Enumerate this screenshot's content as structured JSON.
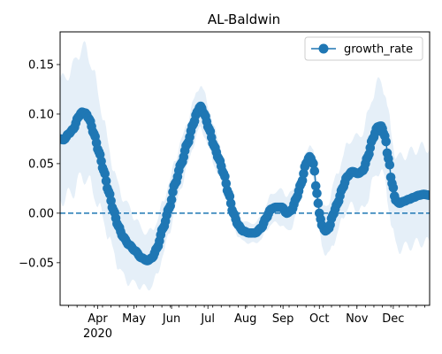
{
  "chart_data": {
    "type": "line",
    "title": "AL-Baldwin",
    "xlabel": "",
    "ylabel": "",
    "x_start": "2020-03-01",
    "x_end": "2020-12-31",
    "ylim": [
      -0.093,
      0.183
    ],
    "month_ticks": [
      {
        "date": "2020-04-01",
        "label": "Apr",
        "sublabel": "2020"
      },
      {
        "date": "2020-05-01",
        "label": "May",
        "sublabel": ""
      },
      {
        "date": "2020-06-01",
        "label": "Jun",
        "sublabel": ""
      },
      {
        "date": "2020-07-01",
        "label": "Jul",
        "sublabel": ""
      },
      {
        "date": "2020-08-01",
        "label": "Aug",
        "sublabel": ""
      },
      {
        "date": "2020-09-01",
        "label": "Sep",
        "sublabel": ""
      },
      {
        "date": "2020-10-01",
        "label": "Oct",
        "sublabel": ""
      },
      {
        "date": "2020-11-01",
        "label": "Nov",
        "sublabel": ""
      },
      {
        "date": "2020-12-01",
        "label": "Dec",
        "sublabel": ""
      }
    ],
    "y_ticks": [
      {
        "value": -0.05,
        "label": "−0.05"
      },
      {
        "value": 0.0,
        "label": "0.00"
      },
      {
        "value": 0.05,
        "label": "0.05"
      },
      {
        "value": 0.1,
        "label": "0.10"
      },
      {
        "value": 0.15,
        "label": "0.15"
      }
    ],
    "reference_line": {
      "y": 0.0,
      "style": "dashed"
    },
    "legend": {
      "position": "upper-right"
    },
    "colors": {
      "series": "#1f77b4",
      "band": "#dce9f5"
    },
    "series": [
      {
        "name": "growth_rate",
        "keypoints": [
          [
            "2020-03-01",
            0.075
          ],
          [
            "2020-03-04",
            0.074
          ],
          [
            "2020-03-08",
            0.08
          ],
          [
            "2020-03-12",
            0.085
          ],
          [
            "2020-03-16",
            0.097
          ],
          [
            "2020-03-19",
            0.102
          ],
          [
            "2020-03-22",
            0.101
          ],
          [
            "2020-03-25",
            0.095
          ],
          [
            "2020-03-29",
            0.08
          ],
          [
            "2020-04-02",
            0.062
          ],
          [
            "2020-04-06",
            0.043
          ],
          [
            "2020-04-10",
            0.022
          ],
          [
            "2020-04-14",
            0.003
          ],
          [
            "2020-04-18",
            -0.013
          ],
          [
            "2020-04-22",
            -0.024
          ],
          [
            "2020-04-27",
            -0.032
          ],
          [
            "2020-05-02",
            -0.038
          ],
          [
            "2020-05-07",
            -0.045
          ],
          [
            "2020-05-12",
            -0.048
          ],
          [
            "2020-05-16",
            -0.045
          ],
          [
            "2020-05-20",
            -0.035
          ],
          [
            "2020-05-25",
            -0.015
          ],
          [
            "2020-05-30",
            0.005
          ],
          [
            "2020-06-04",
            0.03
          ],
          [
            "2020-06-09",
            0.05
          ],
          [
            "2020-06-14",
            0.07
          ],
          [
            "2020-06-19",
            0.09
          ],
          [
            "2020-06-22",
            0.102
          ],
          [
            "2020-06-25",
            0.108
          ],
          [
            "2020-06-28",
            0.1
          ],
          [
            "2020-07-02",
            0.085
          ],
          [
            "2020-07-06",
            0.068
          ],
          [
            "2020-07-10",
            0.055
          ],
          [
            "2020-07-14",
            0.04
          ],
          [
            "2020-07-18",
            0.02
          ],
          [
            "2020-07-22",
            0.0
          ],
          [
            "2020-07-26",
            -0.012
          ],
          [
            "2020-07-30",
            -0.018
          ],
          [
            "2020-08-04",
            -0.02
          ],
          [
            "2020-08-09",
            -0.02
          ],
          [
            "2020-08-14",
            -0.015
          ],
          [
            "2020-08-18",
            -0.005
          ],
          [
            "2020-08-22",
            0.004
          ],
          [
            "2020-08-26",
            0.006
          ],
          [
            "2020-08-31",
            0.006
          ],
          [
            "2020-09-04",
            0.0
          ],
          [
            "2020-09-08",
            0.003
          ],
          [
            "2020-09-12",
            0.015
          ],
          [
            "2020-09-16",
            0.03
          ],
          [
            "2020-09-20",
            0.05
          ],
          [
            "2020-09-23",
            0.057
          ],
          [
            "2020-09-26",
            0.05
          ],
          [
            "2020-09-29",
            0.02
          ],
          [
            "2020-10-01",
            0.0
          ],
          [
            "2020-10-03",
            -0.012
          ],
          [
            "2020-10-06",
            -0.018
          ],
          [
            "2020-10-09",
            -0.015
          ],
          [
            "2020-10-12",
            -0.002
          ],
          [
            "2020-10-16",
            0.01
          ],
          [
            "2020-10-20",
            0.025
          ],
          [
            "2020-10-24",
            0.037
          ],
          [
            "2020-10-28",
            0.042
          ],
          [
            "2020-11-02",
            0.04
          ],
          [
            "2020-11-06",
            0.043
          ],
          [
            "2020-11-10",
            0.057
          ],
          [
            "2020-11-14",
            0.075
          ],
          [
            "2020-11-18",
            0.087
          ],
          [
            "2020-11-21",
            0.088
          ],
          [
            "2020-11-24",
            0.078
          ],
          [
            "2020-11-27",
            0.055
          ],
          [
            "2020-11-30",
            0.03
          ],
          [
            "2020-12-03",
            0.013
          ],
          [
            "2020-12-06",
            0.01
          ],
          [
            "2020-12-10",
            0.012
          ],
          [
            "2020-12-14",
            0.014
          ],
          [
            "2020-12-18",
            0.016
          ],
          [
            "2020-12-22",
            0.018
          ],
          [
            "2020-12-26",
            0.019
          ],
          [
            "2020-12-31",
            0.018
          ]
        ],
        "band_halfwidth_keypoints": [
          [
            "2020-03-01",
            0.06
          ],
          [
            "2020-03-20",
            0.065
          ],
          [
            "2020-04-20",
            0.04
          ],
          [
            "2020-05-12",
            0.028
          ],
          [
            "2020-06-20",
            0.022
          ],
          [
            "2020-08-05",
            0.01
          ],
          [
            "2020-09-05",
            0.018
          ],
          [
            "2020-09-23",
            0.012
          ],
          [
            "2020-10-15",
            0.03
          ],
          [
            "2020-11-21",
            0.045
          ],
          [
            "2020-12-31",
            0.048
          ]
        ]
      }
    ]
  }
}
